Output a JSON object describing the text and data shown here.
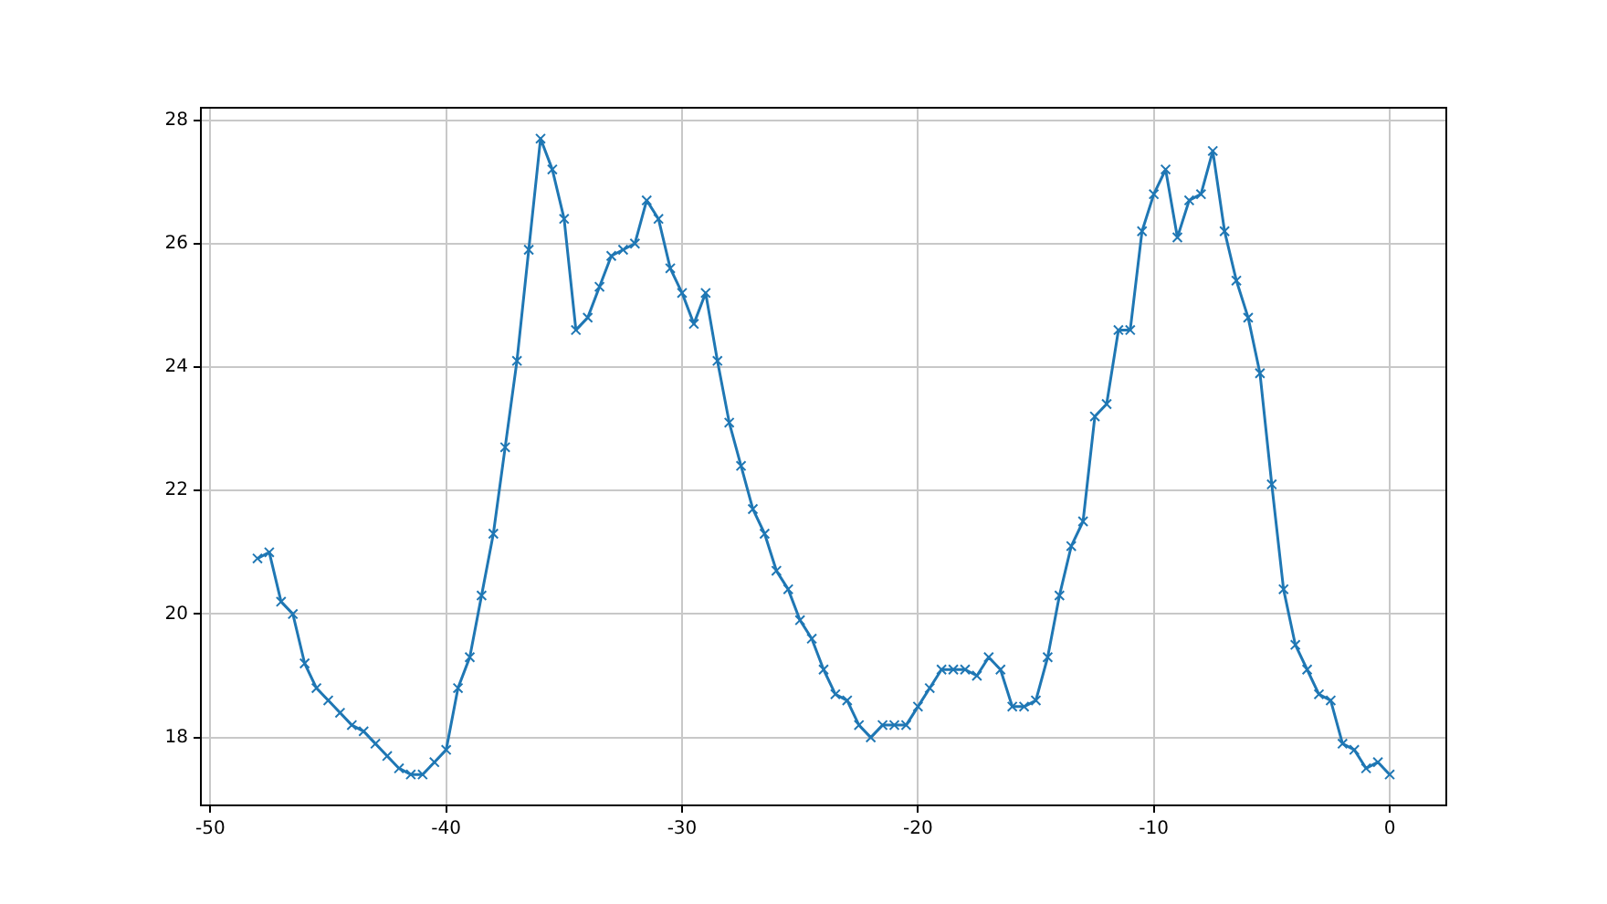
{
  "chart_data": {
    "type": "line",
    "x": [
      -48,
      -47.5,
      -47,
      -46.5,
      -46,
      -45.5,
      -45,
      -44.5,
      -44,
      -43.5,
      -43,
      -42.5,
      -42,
      -41.5,
      -41,
      -40.5,
      -40,
      -39.5,
      -39,
      -38.5,
      -38,
      -37.5,
      -37,
      -36.5,
      -36,
      -35.5,
      -35,
      -34.5,
      -34,
      -33.5,
      -33,
      -32.5,
      -32,
      -31.5,
      -31,
      -30.5,
      -30,
      -29.5,
      -29,
      -28.5,
      -28,
      -27.5,
      -27,
      -26.5,
      -26,
      -25.5,
      -25,
      -24.5,
      -24,
      -23.5,
      -23,
      -22.5,
      -22,
      -21.5,
      -21,
      -20.5,
      -20,
      -19.5,
      -19,
      -18.5,
      -18,
      -17.5,
      -17,
      -16.5,
      -16,
      -15.5,
      -15,
      -14.5,
      -14,
      -13.5,
      -13,
      -12.5,
      -12,
      -11.5,
      -11,
      -10.5,
      -10,
      -9.5,
      -9,
      -8.5,
      -8,
      -7.5,
      -7,
      -6.5,
      -6,
      -5.5,
      -5,
      -4.5,
      -4,
      -3.5,
      -3,
      -2.5,
      -2,
      -1.5,
      -1,
      -0.5,
      0
    ],
    "series": [
      {
        "color": "#1f77b4",
        "values": [
          20.9,
          21.0,
          20.2,
          20.0,
          19.2,
          18.8,
          18.6,
          18.4,
          18.2,
          18.1,
          17.9,
          17.7,
          17.5,
          17.4,
          17.4,
          17.6,
          17.8,
          18.8,
          19.3,
          20.3,
          21.3,
          22.7,
          24.1,
          25.9,
          27.7,
          27.2,
          26.4,
          24.6,
          24.8,
          25.3,
          25.8,
          25.9,
          26.0,
          26.7,
          26.4,
          25.6,
          25.2,
          24.7,
          25.2,
          24.1,
          23.1,
          22.4,
          21.7,
          21.3,
          20.7,
          20.4,
          19.9,
          19.6,
          19.1,
          18.7,
          18.6,
          18.2,
          18.0,
          18.2,
          18.2,
          18.2,
          18.5,
          18.8,
          19.1,
          19.1,
          19.1,
          19.0,
          19.3,
          19.1,
          18.5,
          18.5,
          18.6,
          19.3,
          20.3,
          21.1,
          21.5,
          23.2,
          23.4,
          24.6,
          24.6,
          26.2,
          26.8,
          27.2,
          26.1,
          26.7,
          26.8,
          27.5,
          26.2,
          25.4,
          24.8,
          23.9,
          22.1,
          20.4,
          19.5,
          19.1,
          18.7,
          18.6,
          17.9,
          17.8,
          17.5,
          17.6,
          17.4
        ]
      }
    ],
    "xlim": [
      -50.4,
      2.4
    ],
    "ylim": [
      16.9,
      28.2
    ],
    "xticks": [
      -50,
      -40,
      -30,
      -20,
      -10,
      0
    ],
    "yticks": [
      18,
      20,
      22,
      24,
      26,
      28
    ],
    "grid": true,
    "marker": "cross",
    "line_style": "solid"
  }
}
